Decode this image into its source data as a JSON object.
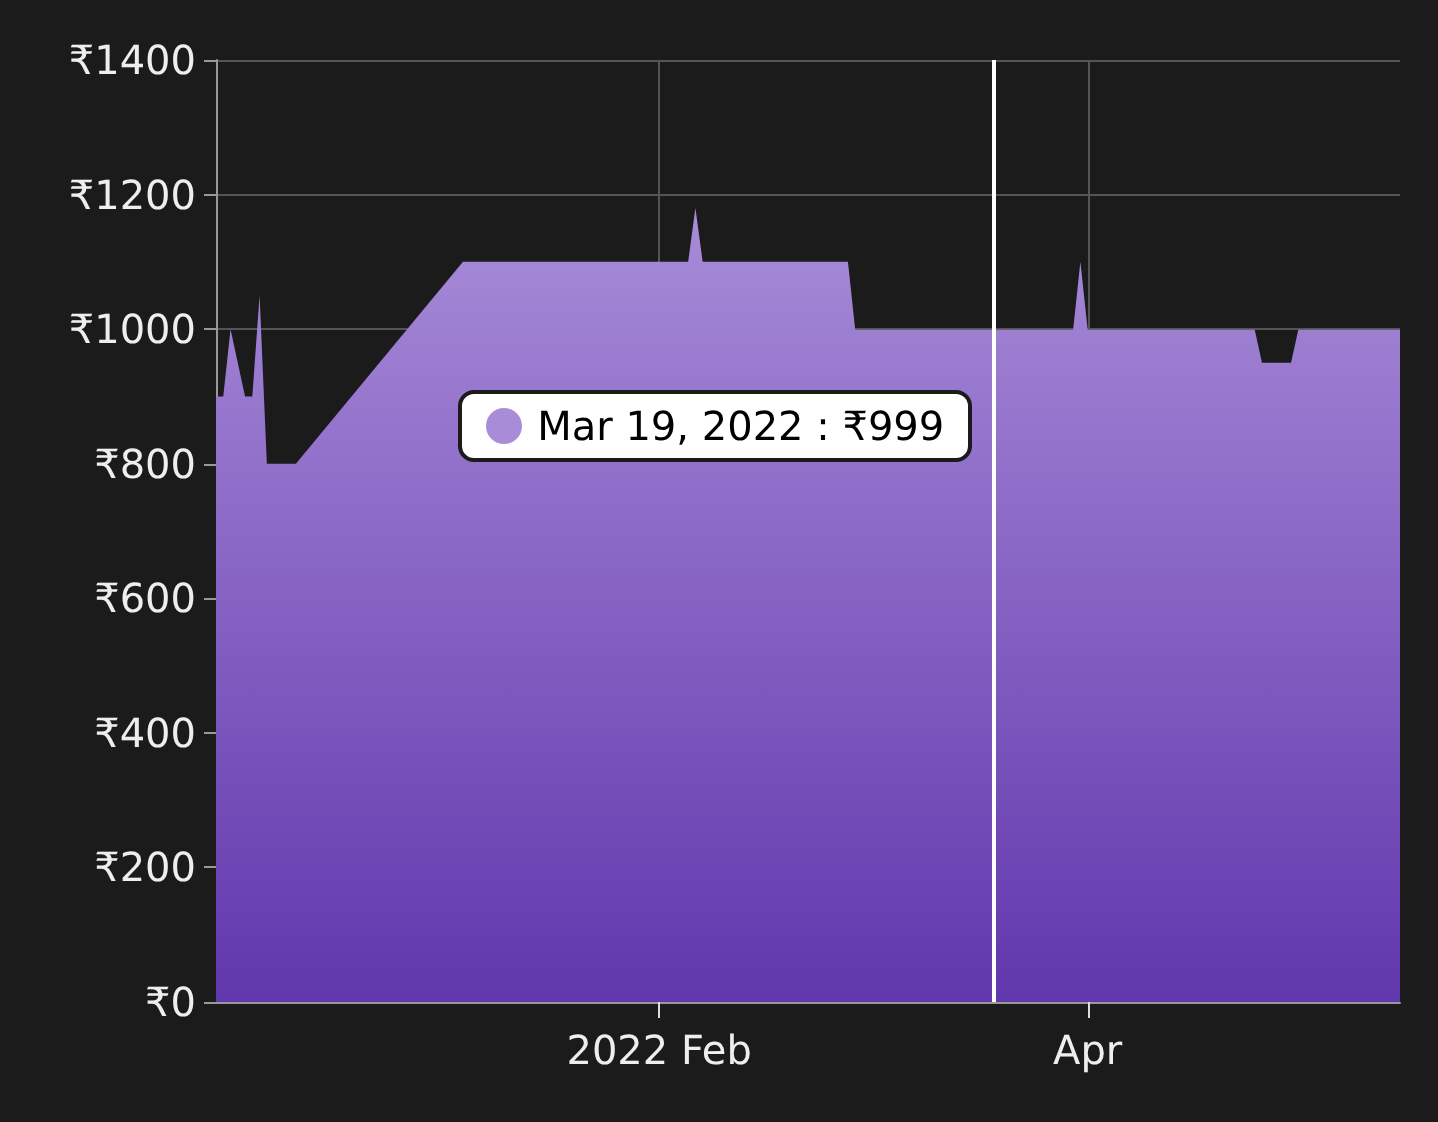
{
  "chart_data": {
    "type": "area",
    "x": [
      "2021-12-02",
      "2021-12-03",
      "2021-12-04",
      "2021-12-06",
      "2021-12-07",
      "2021-12-08",
      "2021-12-09",
      "2021-12-13",
      "2022-01-05",
      "2022-02-05",
      "2022-02-06",
      "2022-02-07",
      "2022-02-27",
      "2022-02-28",
      "2022-03-19",
      "2022-03-30",
      "2022-03-31",
      "2022-04-01",
      "2022-04-24",
      "2022-04-25",
      "2022-04-29",
      "2022-04-30",
      "2022-05-14"
    ],
    "series": [
      {
        "color": "#a88cd8",
        "values": [
          900,
          900,
          1000,
          900,
          900,
          1050,
          800,
          800,
          1100,
          1100,
          1180,
          1100,
          1100,
          999,
          999,
          999,
          1100,
          999,
          999,
          950,
          950,
          999,
          999
        ]
      }
    ],
    "xlim": [
      "2021-12-02",
      "2022-05-14"
    ],
    "xticks": [
      {
        "value": "2022-02-01",
        "label": "2022 Feb"
      },
      {
        "value": "2022-04-01",
        "label": "Apr"
      }
    ],
    "ylim": [
      0,
      1400
    ],
    "yticks": [
      {
        "value": 0,
        "label": "₹0"
      },
      {
        "value": 200,
        "label": "₹200"
      },
      {
        "value": 400,
        "label": "₹400"
      },
      {
        "value": 600,
        "label": "₹600"
      },
      {
        "value": 800,
        "label": "₹800"
      },
      {
        "value": 1000,
        "label": "₹1000"
      },
      {
        "value": 1200,
        "label": "₹1200"
      },
      {
        "value": 1400,
        "label": "₹1400"
      }
    ],
    "ref_lines": [
      {
        "axis": "x",
        "value": "2022-03-19",
        "color": "#ffffff"
      }
    ],
    "annotations": [
      {
        "text": "Mar 19, 2022 : ₹999",
        "x": "2022-03-19",
        "y": 999
      }
    ],
    "grid": true
  }
}
